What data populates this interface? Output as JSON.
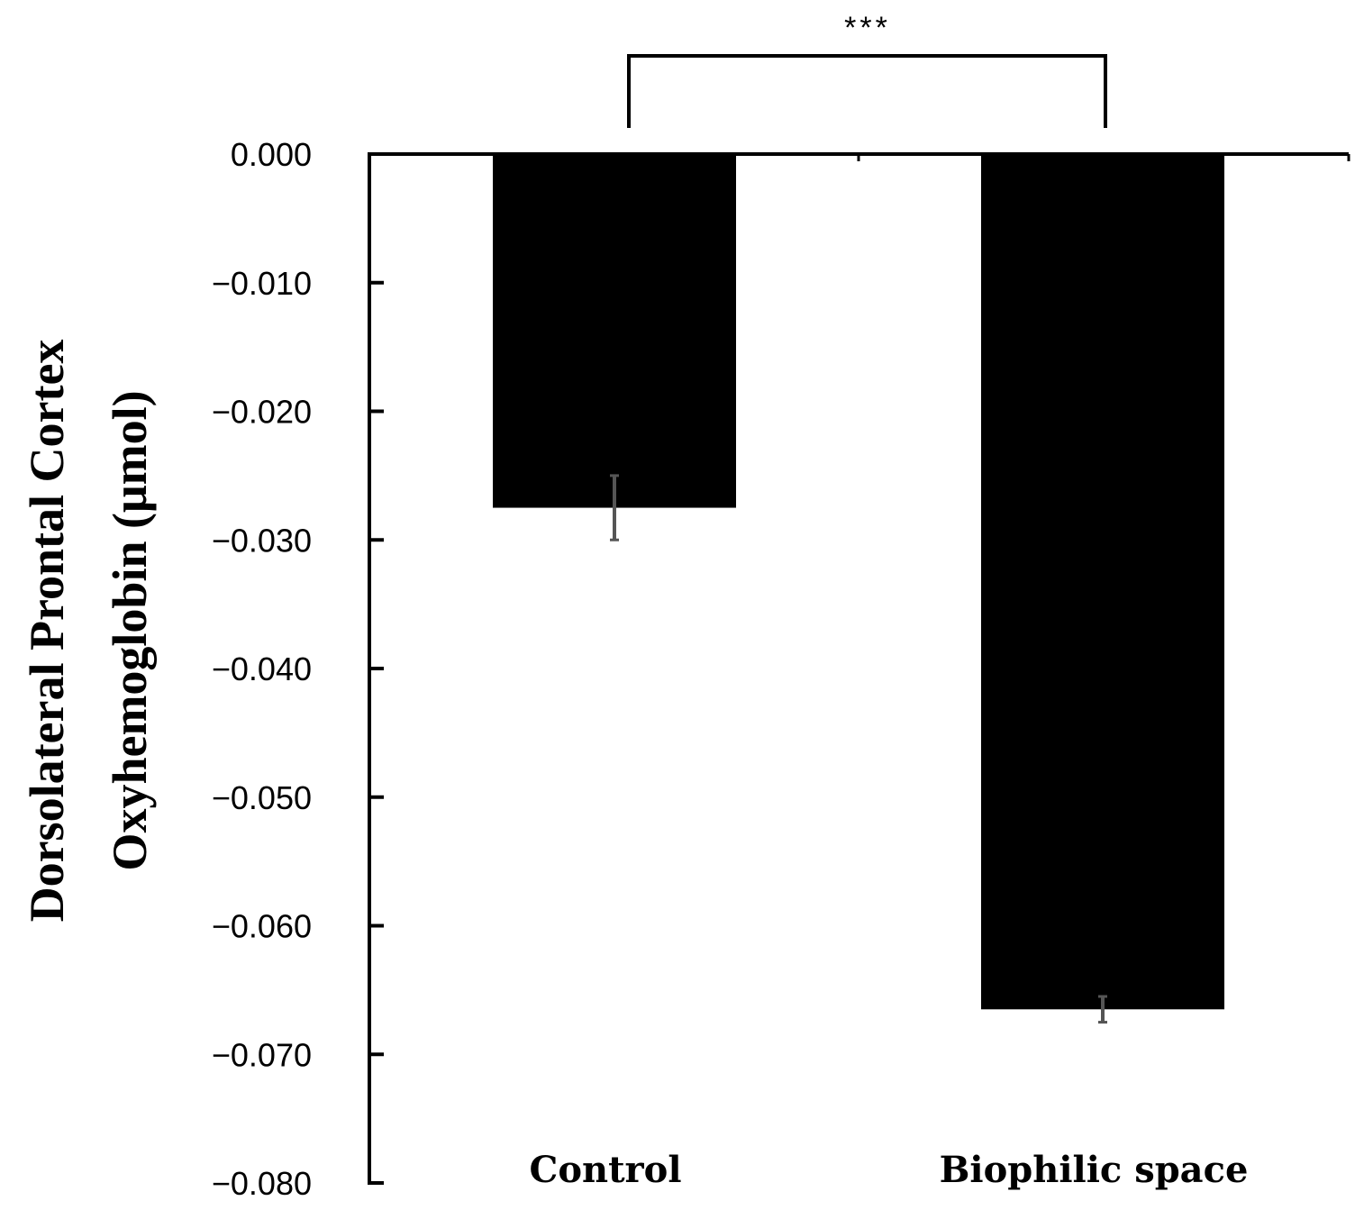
{
  "chart_data": {
    "type": "bar",
    "categories": [
      "Control",
      "Biophilic space"
    ],
    "values": [
      -0.0275,
      -0.0665
    ],
    "error": [
      {
        "low": -0.03,
        "high": -0.025
      },
      {
        "low": -0.0675,
        "high": -0.0655
      }
    ],
    "ylabel_line1": "Dorsolateral Prontal Cortex",
    "ylabel_line2": "Oxyhemoglobin (μmol)",
    "ylim": [
      -0.08,
      0.0
    ],
    "yticks": [
      "0.000",
      "−0.010",
      "−0.020",
      "−0.030",
      "−0.040",
      "−0.050",
      "−0.060",
      "−0.070",
      "−0.080"
    ],
    "ytick_values": [
      0.0,
      -0.01,
      -0.02,
      -0.03,
      -0.04,
      -0.05,
      -0.06,
      -0.07,
      -0.08
    ],
    "significance": "***",
    "bar_color": "#000000",
    "error_color": "#555555",
    "grid": false
  }
}
